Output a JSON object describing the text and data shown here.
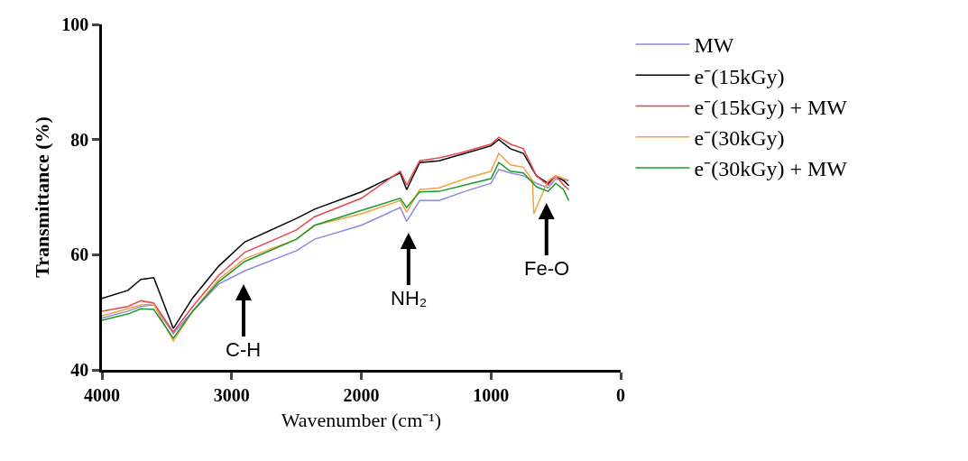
{
  "chart_data": {
    "type": "line",
    "xlabel": "Wavenumber (cm⁻¹)",
    "ylabel": "Transmittance (%)",
    "xlim": [
      4000,
      0
    ],
    "xticks": [
      4000,
      3000,
      2000,
      1000,
      0
    ],
    "ylim": [
      40,
      100
    ],
    "yticks": [
      40,
      60,
      80,
      100
    ],
    "grid": false,
    "legend": "right",
    "marker": "none",
    "line_style": "solid",
    "x": [
      4000,
      3800,
      3700,
      3600,
      3450,
      3300,
      3100,
      2900,
      2500,
      2360,
      2000,
      1700,
      1650,
      1550,
      1400,
      1200,
      1000,
      940,
      850,
      750,
      650,
      560,
      500,
      440,
      400
    ],
    "series": [
      {
        "name": "MW",
        "color": "#8a8ae0",
        "values": [
          49,
          50.2,
          51,
          51.3,
          46.3,
          50.2,
          54.9,
          57.2,
          60.7,
          62.7,
          65.1,
          68.2,
          65.8,
          69.4,
          69.4,
          71,
          72.4,
          74.8,
          74.2,
          73.7,
          72.4,
          71.6,
          73.2,
          72.9,
          72.9
        ]
      },
      {
        "name": "e⁻(15kGy)",
        "color": "#000000",
        "values": [
          52.4,
          53.8,
          55.7,
          56,
          47.2,
          52.5,
          58,
          62.2,
          66.3,
          67.9,
          70.9,
          74.2,
          71.3,
          76,
          76.3,
          77.6,
          78.9,
          80,
          78.4,
          77.6,
          73.7,
          72.4,
          73.7,
          72.9,
          72
        ]
      },
      {
        "name": "e⁻(15kGy) + MW",
        "color": "#e8464e",
        "values": [
          50.2,
          51,
          52,
          51.6,
          46.6,
          51,
          56.4,
          60.4,
          64.3,
          66.6,
          69.8,
          74.5,
          72.1,
          76.3,
          76.8,
          77.9,
          79.2,
          80.4,
          79.2,
          78.4,
          73.7,
          72.1,
          73.7,
          72.1,
          71.3
        ]
      },
      {
        "name": "e⁻(30kGy)",
        "color": "#f5a040",
        "x": [
          4000,
          3800,
          3700,
          3600,
          3450,
          3300,
          3100,
          2900,
          2500,
          2360,
          2000,
          1700,
          1650,
          1550,
          1400,
          1200,
          1000,
          940,
          850,
          750,
          680,
          670,
          560,
          500,
          400
        ],
        "values": [
          49.4,
          50.6,
          51.3,
          51.4,
          45,
          50.2,
          55.7,
          59.3,
          62.7,
          65.1,
          67.1,
          69.4,
          67.4,
          71.3,
          71.6,
          73.2,
          74.5,
          77.6,
          75.6,
          75.2,
          72.9,
          67.1,
          72.9,
          73.7,
          72.9
        ]
      },
      {
        "name": "e⁻(30kGy) + MW",
        "color": "#1a9a2a",
        "values": [
          48.6,
          49.7,
          50.6,
          50.5,
          45.5,
          50.2,
          55.3,
          58.8,
          62.7,
          65.1,
          67.7,
          69.8,
          68.2,
          70.9,
          71,
          72.1,
          73.2,
          76,
          74.5,
          74.2,
          71.8,
          71,
          72.4,
          71.3,
          69.4
        ]
      }
    ],
    "annotations": [
      "C-H",
      "NH₂",
      "Fe-O"
    ]
  }
}
